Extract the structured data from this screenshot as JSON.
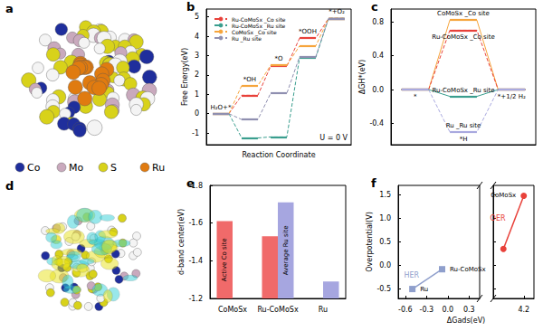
{
  "figure_panels": [
    {
      "panel": "a",
      "legend": [
        {
          "name": "Co",
          "color": "#1f2e9c"
        },
        {
          "name": "Mo",
          "color": "#c9a9bd"
        },
        {
          "name": "S",
          "color": "#d8d21a"
        },
        {
          "name": "Ru",
          "color": "#e07b10"
        }
      ]
    },
    {
      "panel": "d"
    }
  ],
  "chart_data": [
    {
      "panel": "b",
      "type": "energy_profile",
      "xlabel": "Reaction Coordinate",
      "ylabel": "Free Energy(eV)",
      "categories": [
        "H₂O+*",
        "*OH",
        "*O",
        "*OOH",
        "*+O₂"
      ],
      "annotation": "U = 0 V",
      "ylim": [
        -1.6,
        5.4
      ],
      "yticks": [
        -1,
        0,
        1,
        2,
        3,
        4,
        5
      ],
      "legend": "upper left",
      "line_style": "dashed",
      "series": [
        {
          "name": "Ru-CoMoSx _Co site",
          "color": "#e8413a",
          "values": [
            0,
            0.95,
            2.45,
            3.9,
            4.92
          ]
        },
        {
          "name": "Ru-CoMoSx _Ru site",
          "color": "#3a9e8e",
          "values": [
            0,
            -1.25,
            -1.2,
            2.9,
            4.92
          ]
        },
        {
          "name": "CoMoSx _Co site",
          "color": "#f6a53c",
          "values": [
            0,
            1.45,
            2.5,
            3.5,
            4.92
          ]
        },
        {
          "name": "Ru _Ru site",
          "color": "#8f8fb0",
          "values": [
            0,
            -0.3,
            1.05,
            2.95,
            4.92
          ]
        }
      ]
    },
    {
      "panel": "c",
      "type": "energy_profile",
      "ylabel": "ΔGH*(eV)",
      "categories": [
        "*",
        "*H",
        "*+1/2 H₂"
      ],
      "ylim": [
        -0.65,
        0.95
      ],
      "yticks": [
        -0.4,
        {
          "value": 0,
          "label": "0.0"
        },
        0.4,
        0.8
      ],
      "series": [
        {
          "name": "CoMoSx _Co site",
          "color": "#f6a53c",
          "line_style": "solid",
          "values": [
            0,
            0.82,
            0
          ]
        },
        {
          "name": "Ru-CoMoSx _Co site",
          "color": "#e8413a",
          "line_style": "dashed",
          "values": [
            0,
            0.7,
            0
          ]
        },
        {
          "name": "Ru-CoMoSx _Ru site",
          "color": "#3a9e8e",
          "line_style": "solid",
          "values": [
            0,
            -0.08,
            0
          ]
        },
        {
          "name": "Ru _Ru site",
          "color": "#a9a9df",
          "line_style": "dashed",
          "values": [
            0,
            -0.5,
            0
          ]
        }
      ]
    },
    {
      "panel": "e",
      "type": "bar",
      "ylabel": "d-band center(eV)",
      "categories": [
        "CoMoSx",
        "Ru-CoMoSx",
        "Ru"
      ],
      "ylim": [
        -1.2,
        -1.8
      ],
      "yticks": [
        -1.2,
        -1.4,
        -1.6,
        -1.8
      ],
      "series": [
        {
          "name": "Active Co site",
          "color": "#f06a6a",
          "values": [
            -1.61,
            -1.53,
            null
          ]
        },
        {
          "name": "Average Ru site",
          "color": "#a6a6e0",
          "values": [
            null,
            -1.71,
            -1.29
          ]
        }
      ]
    },
    {
      "panel": "f",
      "type": "line",
      "xlabel": "ΔGads(eV)",
      "ylabel": "Overpotential(V)",
      "xlim": [
        [
          -0.7,
          0.45
        ],
        [
          3.3,
          4.5
        ]
      ],
      "xticks": [
        [
          -0.6,
          -0.3,
          {
            "value": 0,
            "label": "0.0"
          },
          0.3
        ],
        [
          4.2
        ]
      ],
      "ylim": [
        -0.7,
        1.7
      ],
      "yticks": [
        -0.5,
        {
          "value": 0,
          "label": "0.0"
        },
        0.5,
        {
          "value": 1,
          "label": "1.0"
        },
        1.5
      ],
      "series": [
        {
          "name": "HER",
          "color": "#8f9fcc",
          "marker": "square",
          "x": [
            -0.5,
            -0.08
          ],
          "values": [
            -0.5,
            -0.08
          ],
          "point_labels": [
            "Ru",
            "Ru-CoMoSx"
          ]
        },
        {
          "name": "OER",
          "color": "#e8413a",
          "marker": "circle",
          "x": [
            3.6,
            4.2
          ],
          "values": [
            0.35,
            1.48
          ],
          "point_labels": [
            null,
            "CoMoSx"
          ]
        }
      ]
    }
  ]
}
